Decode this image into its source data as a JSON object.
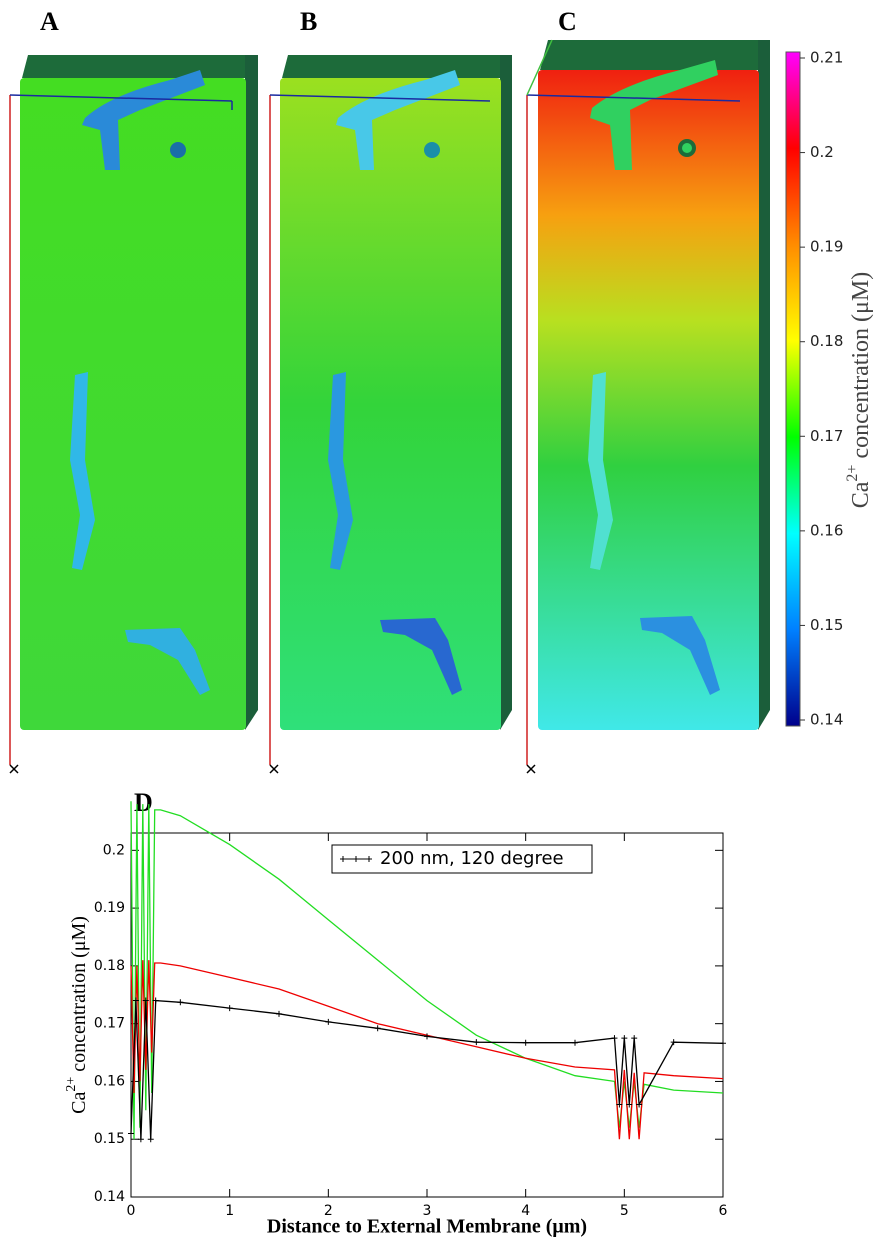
{
  "panels": [
    "A",
    "B",
    "C",
    "D"
  ],
  "chart_data": [
    {
      "type": "colorbar",
      "label_parts": [
        "Ca",
        "2+",
        " concentration (μM)"
      ],
      "colors": [
        "#ff00ff",
        "#ff0000",
        "#ff8c00",
        "#ffff00",
        "#00ff00",
        "#00ffff",
        "#0080ff",
        "#00008b"
      ],
      "ylim": [
        0.14,
        0.21
      ],
      "yticks": [
        0.14,
        0.15,
        0.16,
        0.17,
        0.18,
        0.19,
        0.2,
        0.21
      ]
    },
    {
      "type": "line",
      "xlabel": "Distance to External Membrane (μm)",
      "ylabel_parts": [
        "Ca",
        "2+",
        " concentration (μM)"
      ],
      "xlim": [
        0,
        6
      ],
      "ylim": [
        0.14,
        0.203
      ],
      "xticks": [
        0,
        1,
        2,
        3,
        4,
        5,
        6
      ],
      "yticks": [
        0.14,
        0.15,
        0.16,
        0.17,
        0.18,
        0.19,
        0.2
      ],
      "legend": "upper center",
      "series": [
        {
          "color": "#22dd22",
          "x": [
            0,
            0.03,
            0.06,
            0.09,
            0.12,
            0.15,
            0.18,
            0.21,
            0.24,
            0.3,
            0.5,
            1,
            1.5,
            2,
            2.5,
            3,
            3.5,
            4,
            4.5,
            4.9,
            4.95,
            5.0,
            5.05,
            5.1,
            5.15,
            5.2,
            5.5,
            6
          ],
          "values": [
            0.2085,
            0.15,
            0.208,
            0.152,
            0.208,
            0.155,
            0.208,
            0.158,
            0.207,
            0.207,
            0.206,
            0.201,
            0.195,
            0.188,
            0.181,
            0.174,
            0.168,
            0.164,
            0.161,
            0.16,
            0.152,
            0.16,
            0.152,
            0.16,
            0.152,
            0.1595,
            0.1585,
            0.158
          ]
        },
        {
          "color": "#ee0000",
          "x": [
            0,
            0.03,
            0.06,
            0.09,
            0.12,
            0.15,
            0.18,
            0.21,
            0.24,
            0.3,
            0.5,
            1,
            1.5,
            2,
            2.5,
            3,
            3.5,
            4,
            4.5,
            4.9,
            4.95,
            5.0,
            5.05,
            5.1,
            5.15,
            5.2,
            5.5,
            6
          ],
          "values": [
            0.18,
            0.158,
            0.18,
            0.16,
            0.181,
            0.162,
            0.181,
            0.165,
            0.1805,
            0.1805,
            0.18,
            0.178,
            0.176,
            0.173,
            0.17,
            0.168,
            0.166,
            0.164,
            0.1625,
            0.162,
            0.15,
            0.162,
            0.15,
            0.1615,
            0.15,
            0.1615,
            0.161,
            0.1605
          ]
        },
        {
          "name": "200 nm, 120 degree",
          "color": "#000000",
          "x": [
            0,
            0.05,
            0.1,
            0.15,
            0.2,
            0.25,
            0.5,
            1,
            1.5,
            2,
            2.5,
            3,
            3.5,
            4,
            4.5,
            4.9,
            4.95,
            5.0,
            5.05,
            5.1,
            5.15,
            5.5,
            6
          ],
          "values": [
            0.151,
            0.174,
            0.15,
            0.174,
            0.15,
            0.174,
            0.1737,
            0.1727,
            0.1717,
            0.1703,
            0.1692,
            0.1678,
            0.1668,
            0.1667,
            0.1667,
            0.1675,
            0.156,
            0.1675,
            0.156,
            0.1675,
            0.156,
            0.1668,
            0.1666
          ]
        }
      ]
    }
  ]
}
